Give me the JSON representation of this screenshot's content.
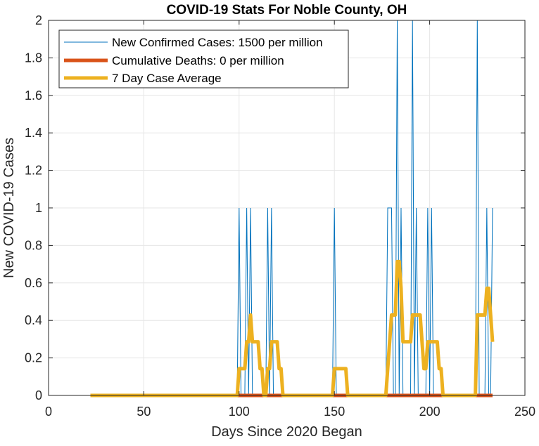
{
  "colors": {
    "background": "#ffffff",
    "axes": "#262626",
    "grid": "#e6e6e6",
    "new_cases": "#0072bd",
    "deaths": "#d95319",
    "avg": "#edb120"
  },
  "chart_data": {
    "type": "line",
    "title": "COVID-19 Stats For Noble County, OH",
    "xlabel": "Days Since 2020 Began",
    "ylabel": "New COVID-19 Cases",
    "xlim": [
      0,
      250
    ],
    "ylim": [
      0,
      2
    ],
    "xticks": [
      0,
      50,
      100,
      150,
      200,
      250
    ],
    "yticks": [
      0,
      0.2,
      0.4,
      0.6,
      0.8,
      1,
      1.2,
      1.4,
      1.6,
      1.8,
      2
    ],
    "xtick_labels": [
      "0",
      "50",
      "100",
      "150",
      "200",
      "250"
    ],
    "ytick_labels": [
      "0",
      "0.2",
      "0.4",
      "0.6",
      "0.8",
      "1",
      "1.2",
      "1.4",
      "1.6",
      "1.8",
      "2"
    ],
    "grid": true,
    "legend_position": "top-left",
    "series": [
      {
        "name": "New Confirmed Cases: 1500 per million",
        "color": "new_cases",
        "style": "thin",
        "events": [
          {
            "day": 100,
            "cases": 1
          },
          {
            "day": 104,
            "cases": 1
          },
          {
            "day": 106,
            "cases": 1
          },
          {
            "day": 115,
            "cases": 1
          },
          {
            "day": 117,
            "cases": 1
          },
          {
            "day": 150,
            "cases": 1
          },
          {
            "day": 178,
            "cases": 1
          },
          {
            "day": 179,
            "cases": 1
          },
          {
            "day": 180,
            "cases": 1
          },
          {
            "day": 183,
            "cases": 2
          },
          {
            "day": 185,
            "cases": 1
          },
          {
            "day": 191,
            "cases": 2
          },
          {
            "day": 193,
            "cases": 1
          },
          {
            "day": 199,
            "cases": 1
          },
          {
            "day": 201,
            "cases": 1
          },
          {
            "day": 225,
            "cases": 2
          },
          {
            "day": 230,
            "cases": 1
          },
          {
            "day": 233,
            "cases": 1
          }
        ],
        "x_start": 22,
        "x_end": 233
      },
      {
        "name": "Cumulative Deaths: 0 per million",
        "color": "deaths",
        "style": "thick",
        "x": [
          22,
          233
        ],
        "y": [
          0,
          0
        ]
      },
      {
        "name": "7 Day Case Average",
        "color": "avg",
        "style": "thick",
        "x": [
          22,
          99,
          100,
          101,
          102,
          103,
          104,
          105,
          106,
          107,
          108,
          109,
          110,
          111,
          112,
          113,
          114,
          115,
          116,
          117,
          118,
          119,
          120,
          121,
          122,
          123,
          124,
          149,
          150,
          156,
          157,
          177,
          178,
          179,
          180,
          181,
          182,
          183,
          184,
          185,
          186,
          187,
          188,
          189,
          190,
          191,
          192,
          193,
          194,
          195,
          196,
          197,
          198,
          199,
          200,
          201,
          202,
          203,
          204,
          205,
          206,
          207,
          208,
          224,
          225,
          226,
          227,
          228,
          229,
          230,
          231,
          232,
          233
        ],
        "y": [
          0,
          0,
          0.143,
          0.143,
          0.143,
          0.143,
          0.286,
          0.286,
          0.429,
          0.286,
          0.286,
          0.286,
          0.286,
          0.143,
          0.143,
          0,
          0,
          0.143,
          0.143,
          0.286,
          0.286,
          0.286,
          0.286,
          0.143,
          0.143,
          0,
          0,
          0,
          0.143,
          0.143,
          0,
          0,
          0.143,
          0.286,
          0.429,
          0.429,
          0.429,
          0.714,
          0.714,
          0.571,
          0.286,
          0.286,
          0.286,
          0.286,
          0.286,
          0.429,
          0.429,
          0.429,
          0.429,
          0.429,
          0.286,
          0.143,
          0.143,
          0.286,
          0.286,
          0.286,
          0.286,
          0.286,
          0.286,
          0.143,
          0.143,
          0,
          0,
          0,
          0.429,
          0.429,
          0.429,
          0.429,
          0.429,
          0.571,
          0.571,
          0.429,
          0.286
        ]
      }
    ]
  }
}
